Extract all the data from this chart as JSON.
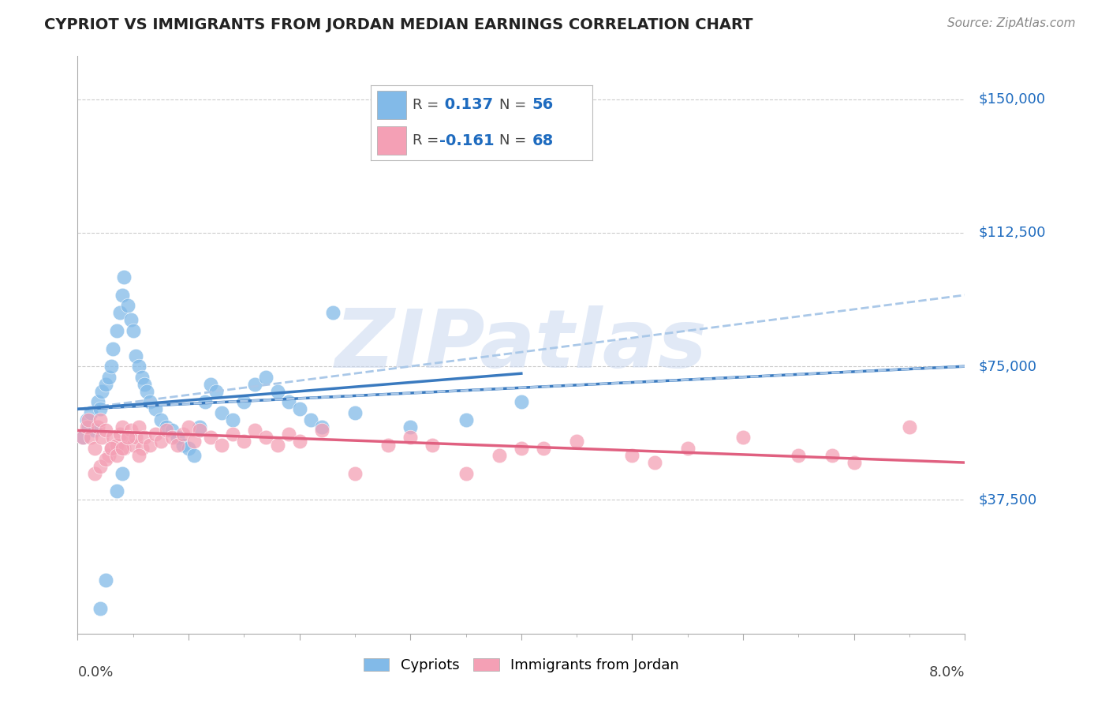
{
  "title": "CYPRIOT VS IMMIGRANTS FROM JORDAN MEDIAN EARNINGS CORRELATION CHART",
  "source": "Source: ZipAtlas.com",
  "ylabel": "Median Earnings",
  "xmin": 0.0,
  "xmax": 8.0,
  "ymin": 0,
  "ymax": 162000,
  "yticks": [
    37500,
    75000,
    112500,
    150000
  ],
  "ytick_labels": [
    "$37,500",
    "$75,000",
    "$112,500",
    "$150,000"
  ],
  "blue_R": 0.137,
  "blue_N": 56,
  "pink_R": -0.161,
  "pink_N": 68,
  "blue_color": "#82bae8",
  "pink_color": "#f4a0b5",
  "blue_line_color": "#3a7abf",
  "blue_line_dash_color": "#aac8e8",
  "pink_line_color": "#e06080",
  "watermark": "ZIPatlas",
  "watermark_color": "#cad8f0",
  "legend_blue_label": "Cypriots",
  "legend_pink_label": "Immigrants from Jordan",
  "accent_color": "#1e6bbf",
  "grid_color": "#cccccc",
  "title_color": "#222222",
  "axis_color": "#aaaaaa",
  "blue_scatter_x": [
    0.05,
    0.08,
    0.1,
    0.12,
    0.15,
    0.18,
    0.2,
    0.22,
    0.25,
    0.28,
    0.3,
    0.32,
    0.35,
    0.38,
    0.4,
    0.42,
    0.45,
    0.48,
    0.5,
    0.52,
    0.55,
    0.58,
    0.6,
    0.62,
    0.65,
    0.7,
    0.75,
    0.8,
    0.85,
    0.9,
    0.95,
    1.0,
    1.05,
    1.1,
    1.15,
    1.2,
    1.25,
    1.3,
    1.4,
    1.5,
    1.6,
    1.7,
    1.8,
    1.9,
    2.0,
    2.1,
    2.2,
    2.5,
    3.0,
    3.5,
    4.0,
    2.3,
    0.2,
    0.25,
    0.35,
    0.4
  ],
  "blue_scatter_y": [
    55000,
    60000,
    58000,
    62000,
    57000,
    65000,
    63000,
    68000,
    70000,
    72000,
    75000,
    80000,
    85000,
    90000,
    95000,
    100000,
    92000,
    88000,
    85000,
    78000,
    75000,
    72000,
    70000,
    68000,
    65000,
    63000,
    60000,
    58000,
    57000,
    55000,
    53000,
    52000,
    50000,
    58000,
    65000,
    70000,
    68000,
    62000,
    60000,
    65000,
    70000,
    72000,
    68000,
    65000,
    63000,
    60000,
    58000,
    62000,
    58000,
    60000,
    65000,
    90000,
    7000,
    15000,
    40000,
    45000
  ],
  "pink_scatter_x": [
    0.05,
    0.08,
    0.1,
    0.12,
    0.15,
    0.18,
    0.2,
    0.22,
    0.25,
    0.28,
    0.3,
    0.32,
    0.35,
    0.38,
    0.4,
    0.42,
    0.45,
    0.48,
    0.5,
    0.52,
    0.55,
    0.58,
    0.6,
    0.65,
    0.7,
    0.75,
    0.8,
    0.85,
    0.9,
    0.95,
    1.0,
    1.05,
    1.1,
    1.2,
    1.3,
    1.4,
    1.5,
    1.6,
    1.7,
    1.8,
    1.9,
    2.0,
    2.2,
    2.5,
    2.8,
    3.0,
    3.2,
    3.5,
    4.0,
    4.5,
    5.0,
    5.5,
    6.0,
    6.5,
    7.0,
    7.5,
    0.15,
    0.2,
    0.25,
    0.3,
    0.35,
    0.4,
    0.45,
    0.55,
    3.8,
    4.2,
    5.2,
    6.8
  ],
  "pink_scatter_y": [
    55000,
    58000,
    60000,
    55000,
    52000,
    58000,
    60000,
    55000,
    57000,
    50000,
    52000,
    55000,
    53000,
    56000,
    58000,
    52000,
    55000,
    57000,
    53000,
    55000,
    58000,
    52000,
    55000,
    53000,
    56000,
    54000,
    57000,
    55000,
    53000,
    56000,
    58000,
    54000,
    57000,
    55000,
    53000,
    56000,
    54000,
    57000,
    55000,
    53000,
    56000,
    54000,
    57000,
    45000,
    53000,
    55000,
    53000,
    45000,
    52000,
    54000,
    50000,
    52000,
    55000,
    50000,
    48000,
    58000,
    45000,
    47000,
    49000,
    52000,
    50000,
    52000,
    55000,
    50000,
    50000,
    52000,
    48000,
    50000
  ]
}
